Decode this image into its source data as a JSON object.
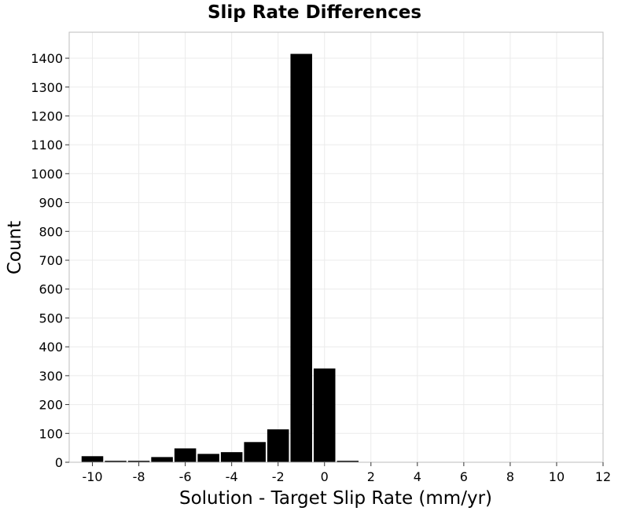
{
  "chart_data": {
    "type": "bar",
    "title": "Slip Rate Differences",
    "xlabel": "Solution - Target Slip Rate (mm/yr)",
    "ylabel": "Count",
    "xlim": [
      -11,
      12
    ],
    "ylim": [
      0,
      1490
    ],
    "xticks": [
      -10,
      -8,
      -6,
      -4,
      -2,
      0,
      2,
      4,
      6,
      8,
      10,
      12
    ],
    "xtick_labels": [
      "-10",
      "-8",
      "-6",
      "-4",
      "-2",
      "0",
      "2",
      "4",
      "6",
      "8",
      "10",
      "12"
    ],
    "yticks": [
      0,
      100,
      200,
      300,
      400,
      500,
      600,
      700,
      800,
      900,
      1000,
      1100,
      1200,
      1300,
      1400
    ],
    "ytick_labels": [
      "0",
      "100",
      "200",
      "300",
      "400",
      "500",
      "600",
      "700",
      "800",
      "900",
      "1000",
      "1100",
      "1200",
      "1300",
      "1400"
    ],
    "bin_width": 1,
    "bins": [
      {
        "x": -10,
        "value": 21
      },
      {
        "x": -9,
        "value": 5
      },
      {
        "x": -8,
        "value": 5
      },
      {
        "x": -7,
        "value": 18
      },
      {
        "x": -6,
        "value": 48
      },
      {
        "x": -5,
        "value": 29
      },
      {
        "x": -4,
        "value": 35
      },
      {
        "x": -3,
        "value": 70
      },
      {
        "x": -2,
        "value": 114
      },
      {
        "x": -1,
        "value": 1415
      },
      {
        "x": 0,
        "value": 325
      },
      {
        "x": 1,
        "value": 5
      }
    ],
    "grid": true,
    "bar_color": "#000000",
    "legend": "none"
  }
}
